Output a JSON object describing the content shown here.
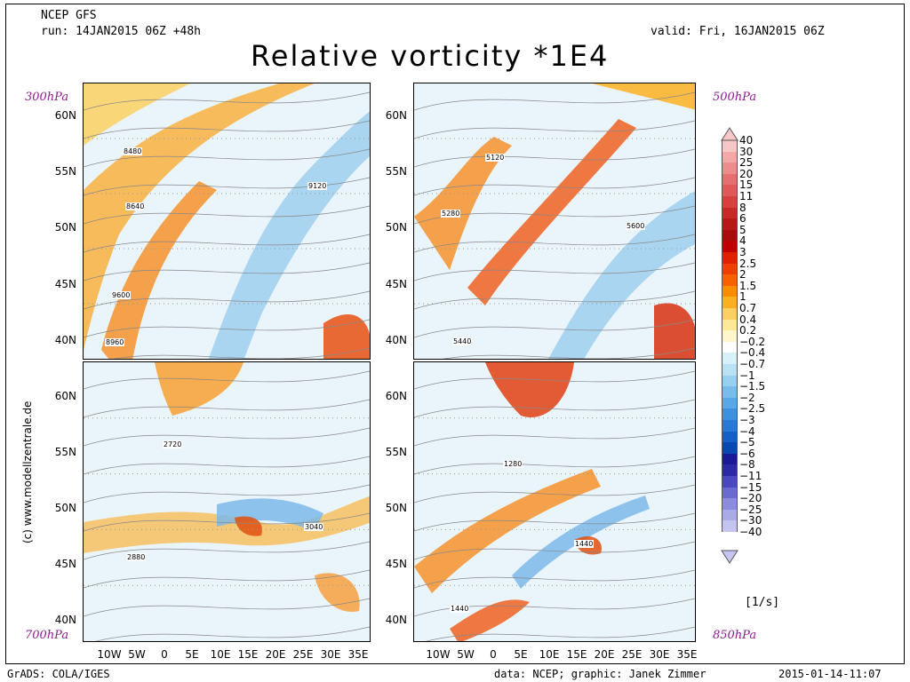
{
  "header": {
    "model": "NCEP GFS",
    "run": "run: 14JAN2015 06Z +48h",
    "valid": "valid: Fri, 16JAN2015 06Z",
    "title": "Relative vorticity *1E4"
  },
  "panels": [
    {
      "level": "300hPa",
      "contours": [
        "8480",
        "8640",
        "9120",
        "9600",
        "8960"
      ]
    },
    {
      "level": "500hPa",
      "contours": [
        "5120",
        "5280",
        "5600",
        "5440"
      ]
    },
    {
      "level": "700hPa",
      "contours": [
        "2720",
        "3040",
        "2880"
      ]
    },
    {
      "level": "850hPa",
      "contours": [
        "1280",
        "1440",
        "1440"
      ]
    }
  ],
  "lat_labels": [
    "60N",
    "55N",
    "50N",
    "45N",
    "40N"
  ],
  "lon_labels": [
    "10W",
    "5W",
    "0",
    "5E",
    "10E",
    "15E",
    "20E",
    "25E",
    "30E",
    "35E"
  ],
  "colorbar": {
    "labels": [
      "40",
      "30",
      "25",
      "20",
      "15",
      "11",
      "8",
      "6",
      "5",
      "4",
      "3",
      "2.5",
      "2",
      "1.5",
      "1",
      "0.7",
      "0.4",
      "0.2",
      "−0.2",
      "−0.4",
      "−0.7",
      "−1",
      "−1.5",
      "−2",
      "−2.5",
      "−3",
      "−4",
      "−5",
      "−6",
      "−8",
      "−11",
      "−15",
      "−20",
      "−25",
      "−30",
      "−40"
    ],
    "colors": [
      "#f7c7c7",
      "#f2a8a8",
      "#ec8c8c",
      "#e67070",
      "#e05858",
      "#d84040",
      "#c82828",
      "#b81818",
      "#a80c0c",
      "#c00000",
      "#e02000",
      "#f04000",
      "#f86000",
      "#fa8c00",
      "#fbb020",
      "#fcd060",
      "#fde898",
      "#fff6cc",
      "#ffffff",
      "#d8f0f8",
      "#b8e2f4",
      "#98d0f0",
      "#78bcec",
      "#58a8e8",
      "#3c90e0",
      "#2878d8",
      "#1460c8",
      "#0848b0",
      "#1a1a98",
      "#2a2aa8",
      "#4848c0",
      "#6a6ad0",
      "#8c8cdc",
      "#aaaae6",
      "#c4c4f0"
    ],
    "unit": "[1/s]"
  },
  "side_text": "(c) www.modellzentrale.de",
  "footer": {
    "left": "GrADS: COLA/IGES",
    "data": "data: NCEP; graphic: Janek Zimmer",
    "timestamp": "2015-01-14-11:07"
  }
}
